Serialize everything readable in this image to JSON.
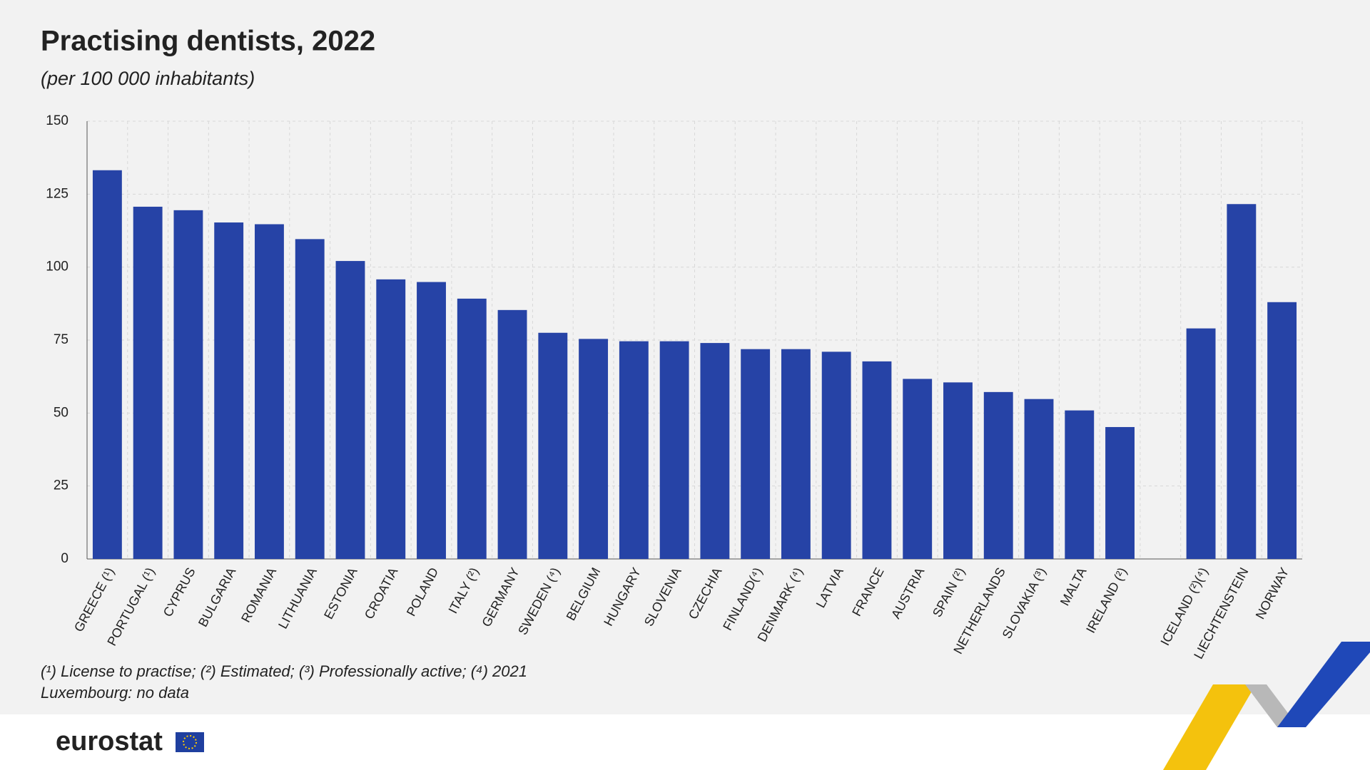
{
  "chart_data": {
    "type": "bar",
    "title": "Practising dentists, 2022",
    "subtitle": "(per 100 000 inhabitants)",
    "categories": [
      "GREECE (¹)",
      "PORTUGAL (¹)",
      "CYPRUS",
      "BULGARIA",
      "ROMANIA",
      "LITHUANIA",
      "ESTONIA",
      "CROATIA",
      "POLAND",
      "ITALY (²)",
      "GERMANY",
      "SWEDEN (⁴)",
      "BELGIUM",
      "HUNGARY",
      "SLOVENIA",
      "CZECHIA",
      "FINLAND(⁴)",
      "DENMARK (⁴)",
      "LATVIA",
      "FRANCE",
      "AUSTRIA",
      "SPAIN (²)",
      "NETHERLANDS",
      "SLOVAKIA (³)",
      "MALTA",
      "IRELAND (²)",
      null,
      "ICELAND (²)(⁴)",
      "LIECHTENSTEIN",
      "NORWAY"
    ],
    "values": [
      133.2,
      120.7,
      119.5,
      115.3,
      114.7,
      109.6,
      102.1,
      95.8,
      94.9,
      89.2,
      85.3,
      77.5,
      75.4,
      74.6,
      74.6,
      74.0,
      71.9,
      71.9,
      71.0,
      67.7,
      61.7,
      60.5,
      57.2,
      54.8,
      50.9,
      45.2,
      null,
      79.0,
      121.6,
      88.0
    ],
    "color": "#2643a6",
    "ylim": [
      0,
      150
    ],
    "yticks": [
      0,
      25,
      50,
      75,
      100,
      125,
      150
    ],
    "grid": true,
    "footnotes": [
      "(¹) License to practise;  (²) Estimated;  (³) Professionally active; (⁴) 2021",
      "Luxembourg: no data"
    ],
    "brand": "eurostat"
  }
}
